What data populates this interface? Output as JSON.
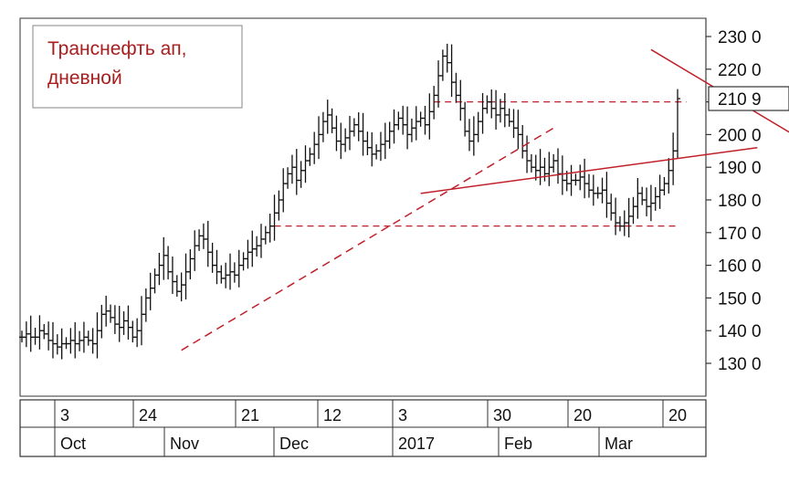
{
  "chart_data": {
    "type": "ohlc",
    "title_lines": [
      "Транснефть ап,",
      "дневной"
    ],
    "y_ticks": [
      130,
      140,
      150,
      160,
      170,
      180,
      190,
      200,
      210,
      220,
      230
    ],
    "y_tick_labels": [
      "130 0",
      "140 0",
      "150 0",
      "160 0",
      "170 0",
      "180 0",
      "190 0",
      "200 0",
      "210 0",
      "220 0",
      "230 0"
    ],
    "price_marker": "210 9",
    "ylim": [
      122,
      234
    ],
    "x_day_labels": [
      "3",
      "24",
      "21",
      "12",
      "3",
      "30",
      "20",
      "20"
    ],
    "x_month_labels": [
      "Oct",
      "Nov",
      "Dec",
      "2017",
      "Feb",
      "Mar"
    ],
    "series": [
      {
        "values": [
          138,
          139,
          138,
          138,
          140,
          139,
          137,
          136,
          135,
          136,
          136,
          137,
          136,
          137,
          138,
          137,
          136,
          140,
          145,
          146,
          144,
          142,
          141,
          143,
          141,
          138,
          140,
          145,
          150,
          153,
          157,
          160,
          163,
          158,
          155,
          152,
          154,
          158,
          162,
          166,
          169,
          168,
          164,
          160,
          158,
          156,
          157,
          158,
          157,
          160,
          162,
          164,
          165,
          166,
          168,
          170,
          172,
          176,
          180,
          185,
          188,
          190,
          186,
          189,
          192,
          194,
          197,
          200,
          204,
          206,
          202,
          198,
          197,
          199,
          201,
          203,
          201,
          198,
          196,
          194,
          195,
          197,
          198,
          201,
          203,
          205,
          203,
          200,
          202,
          204,
          205,
          203,
          207,
          212,
          218,
          224,
          222,
          216,
          212,
          208,
          201,
          198,
          200,
          204,
          208,
          210,
          208,
          206,
          208,
          206,
          204,
          202,
          200,
          195,
          192,
          190,
          189,
          190,
          188,
          190,
          192,
          188,
          186,
          185,
          186,
          186,
          187,
          185,
          183,
          182,
          182,
          183,
          179,
          176,
          173,
          172,
          173,
          175,
          178,
          182,
          180,
          178,
          179,
          181,
          183,
          185,
          189,
          195,
          211
        ]
      }
    ],
    "support_levels": [
      {
        "value": 172,
        "from_index": 57,
        "to_index": 148
      },
      {
        "value": 210,
        "from_index": 93,
        "to_index": 150
      }
    ],
    "trend_lines": [
      {
        "from": [
          36,
          134
        ],
        "to": [
          120,
          202
        ],
        "style": "dashed"
      },
      {
        "from": [
          90,
          182
        ],
        "to": [
          166,
          196
        ],
        "style": "solid"
      },
      {
        "from": [
          142,
          226
        ],
        "to": [
          200,
          179
        ],
        "style": "solid"
      }
    ],
    "colors": {
      "bars": "#111111",
      "lines": "#c0202a",
      "frame": "#555555",
      "title_border": "#9a9a9a"
    }
  }
}
